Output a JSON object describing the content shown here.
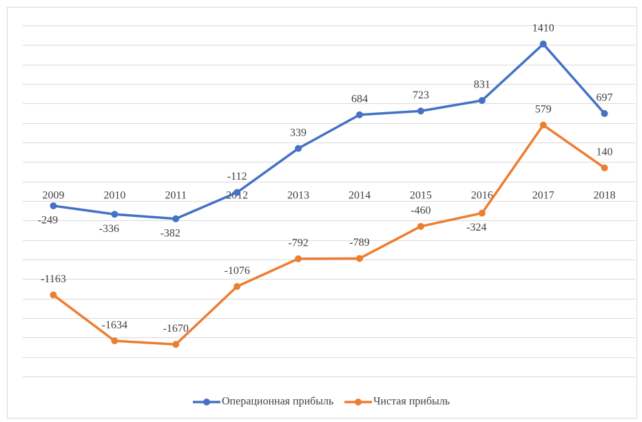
{
  "chart_data": {
    "type": "line",
    "categories": [
      "2009",
      "2010",
      "2011",
      "2012",
      "2013",
      "2014",
      "2015",
      "2016",
      "2017",
      "2018"
    ],
    "series": [
      {
        "name": "Операционная прибыль",
        "color": "#4472c4",
        "values": [
          -249,
          -336,
          -382,
          -112,
          339,
          684,
          723,
          831,
          1410,
          697
        ]
      },
      {
        "name": "Чистая прибыль",
        "color": "#ed7d31",
        "values": [
          -1163,
          -1634,
          -1670,
          -1076,
          -792,
          -789,
          -460,
          -324,
          579,
          140
        ]
      }
    ],
    "ylim": [
      -2000,
      1600
    ],
    "yticks": [
      -2000,
      -1800,
      -1600,
      -1400,
      -1200,
      -1000,
      -800,
      -600,
      -400,
      -200,
      0,
      200,
      400,
      600,
      800,
      1000,
      1200,
      1400,
      1600
    ],
    "grid": true,
    "legend": "bottom"
  }
}
